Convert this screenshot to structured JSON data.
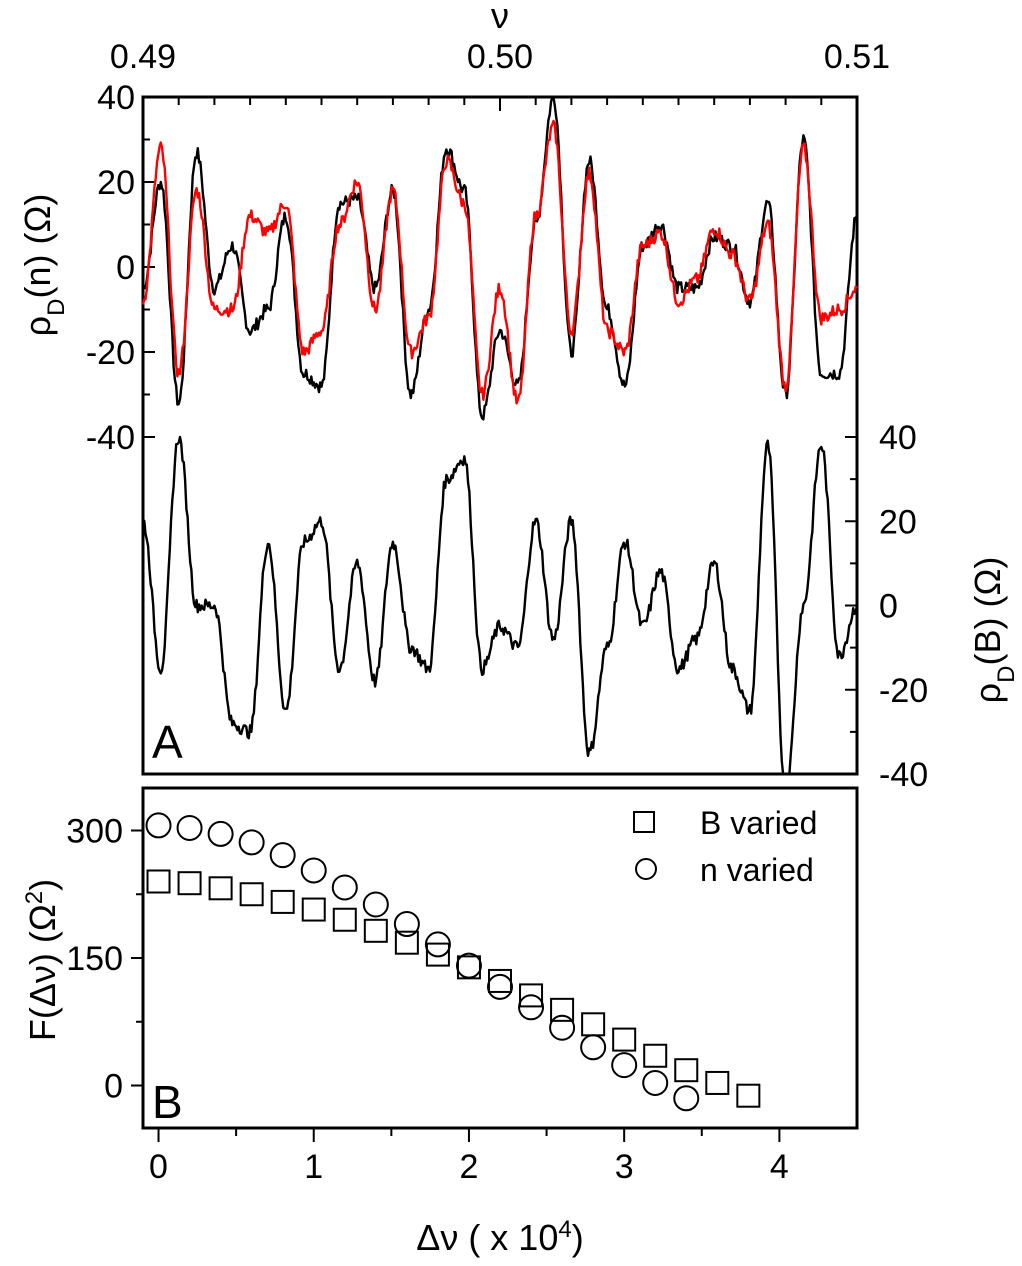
{
  "chart_data": [
    {
      "panel": "A",
      "type": "line",
      "title": "",
      "xlabel_top": "ν",
      "x_ticks_top": [
        "0.49",
        "0.50",
        "0.51"
      ],
      "xlim": [
        0.49,
        0.51
      ],
      "upper": {
        "ylabel": "ρD(n) (Ω)",
        "ylabel_main": "ρ",
        "ylabel_sub": "D",
        "ylabel_rest": "(n) (Ω)",
        "ylim": [
          -40,
          40
        ],
        "y_ticks": [
          "40",
          "20",
          "0",
          "-20",
          "-40"
        ],
        "series": [
          {
            "name": "black trace",
            "color": "#000000",
            "x": [
              0.49,
              0.4905,
              0.491,
              0.4915,
              0.492,
              0.4925,
              0.493,
              0.4935,
              0.494,
              0.4945,
              0.495,
              0.4955,
              0.496,
              0.4965,
              0.497,
              0.4975,
              0.498,
              0.4985,
              0.499,
              0.4995,
              0.5,
              0.5005,
              0.501,
              0.5015,
              0.502,
              0.5025,
              0.503,
              0.5035,
              0.504,
              0.5045,
              0.505,
              0.5055,
              0.506,
              0.5065,
              0.507,
              0.5075,
              0.508,
              0.5085,
              0.509,
              0.5095,
              0.51
            ],
            "values": [
              -5,
              20,
              -32,
              27,
              -5,
              5,
              -15,
              -10,
              12,
              -25,
              -28,
              15,
              16,
              -5,
              18,
              -30,
              -10,
              28,
              18,
              -35,
              -15,
              -28,
              10,
              40,
              -20,
              25,
              -10,
              -28,
              5,
              10,
              -5,
              -5,
              7,
              5,
              -8,
              15,
              -30,
              30,
              -25,
              -25,
              12
            ]
          },
          {
            "name": "red trace",
            "color": "#ff0000",
            "x": [
              0.49,
              0.4905,
              0.491,
              0.4915,
              0.492,
              0.4925,
              0.493,
              0.4935,
              0.494,
              0.4945,
              0.495,
              0.4955,
              0.496,
              0.4965,
              0.497,
              0.4975,
              0.498,
              0.4985,
              0.499,
              0.4995,
              0.5,
              0.5005,
              0.501,
              0.5015,
              0.502,
              0.5025,
              0.503,
              0.5035,
              0.504,
              0.5045,
              0.505,
              0.5055,
              0.506,
              0.5065,
              0.507,
              0.5075,
              0.508,
              0.5085,
              0.509,
              0.5095,
              0.51
            ],
            "values": [
              -8,
              28,
              -25,
              18,
              -10,
              -10,
              12,
              8,
              15,
              -20,
              -15,
              10,
              20,
              -10,
              18,
              -20,
              -12,
              25,
              15,
              -30,
              -5,
              -32,
              12,
              33,
              -15,
              22,
              -15,
              -20,
              5,
              8,
              -8,
              -3,
              9,
              3,
              -8,
              10,
              -28,
              28,
              -12,
              -10,
              -5
            ]
          }
        ]
      },
      "lower": {
        "ylabel": "ρD(B) (Ω)",
        "ylabel_main": "ρ",
        "ylabel_sub": "D",
        "ylabel_rest": "(B) (Ω)",
        "ylim": [
          -40,
          40
        ],
        "y_ticks": [
          "40",
          "20",
          "0",
          "-20",
          "-40"
        ],
        "series": [
          {
            "name": "black trace",
            "color": "#000000",
            "x": [
              0.49,
              0.4905,
              0.491,
              0.4915,
              0.492,
              0.4925,
              0.493,
              0.4935,
              0.494,
              0.4945,
              0.495,
              0.4955,
              0.496,
              0.4965,
              0.497,
              0.4975,
              0.498,
              0.4985,
              0.499,
              0.4995,
              0.5,
              0.5005,
              0.501,
              0.5015,
              0.502,
              0.5025,
              0.503,
              0.5035,
              0.504,
              0.5045,
              0.505,
              0.5055,
              0.506,
              0.5065,
              0.507,
              0.5075,
              0.508,
              0.5085,
              0.509,
              0.5095,
              0.51
            ],
            "values": [
              20,
              -15,
              40,
              0,
              0,
              -28,
              -30,
              15,
              -25,
              15,
              20,
              -15,
              10,
              -18,
              15,
              -10,
              -15,
              30,
              35,
              -15,
              -5,
              -10,
              20,
              -8,
              20,
              -35,
              -10,
              15,
              -5,
              8,
              -15,
              -8,
              10,
              -15,
              -25,
              38,
              -45,
              0,
              38,
              -12,
              0
            ]
          }
        ]
      },
      "panel_label": "A"
    },
    {
      "panel": "B",
      "type": "scatter",
      "title": "",
      "xlabel": "Δν ( x 10⁴)",
      "xlabel_main": "Δν ( x 10",
      "xlabel_sup": "4",
      "xlabel_end": ")",
      "ylabel": "F(Δν) (Ω²)",
      "ylabel_main": "F(Δν) (Ω",
      "ylabel_sup": "2",
      "ylabel_end": ")",
      "xlim": [
        -0.1,
        4.5
      ],
      "ylim": [
        -50,
        350
      ],
      "x_ticks": [
        "0",
        "1",
        "2",
        "3",
        "4"
      ],
      "y_ticks": [
        "300",
        "150",
        "0"
      ],
      "legend": "top-right",
      "panel_label": "B",
      "series": [
        {
          "name": "B varied",
          "marker": "square",
          "x": [
            0,
            0.2,
            0.4,
            0.6,
            0.8,
            1.0,
            1.2,
            1.4,
            1.6,
            1.8,
            2.0,
            2.2,
            2.4,
            2.6,
            2.8,
            3.0,
            3.2,
            3.4,
            3.6,
            3.8
          ],
          "values": [
            240,
            238,
            232,
            225,
            216,
            207,
            195,
            182,
            168,
            154,
            139,
            123,
            106,
            89,
            72,
            54,
            35,
            18,
            3,
            -12
          ]
        },
        {
          "name": "n varied",
          "marker": "circle",
          "x": [
            0,
            0.2,
            0.4,
            0.6,
            0.8,
            1.0,
            1.2,
            1.4,
            1.6,
            1.8,
            2.0,
            2.2,
            2.4,
            2.6,
            2.8,
            3.0,
            3.2,
            3.4
          ],
          "values": [
            306,
            303,
            296,
            286,
            271,
            253,
            233,
            213,
            190,
            166,
            141,
            116,
            92,
            68,
            45,
            24,
            3,
            -15
          ]
        }
      ]
    }
  ]
}
